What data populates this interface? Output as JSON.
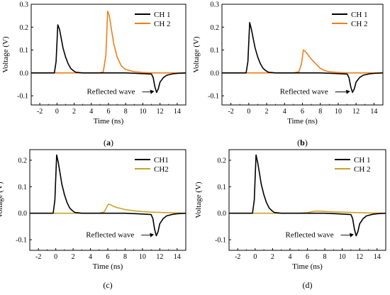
{
  "chart_data": [
    {
      "type": "line",
      "panel_label": "(a)",
      "xlabel": "Time (ns)",
      "ylabel": "Voltage (V)",
      "xlim": [
        -3,
        15
      ],
      "ylim": [
        -0.14,
        0.3
      ],
      "xticks": [
        -2,
        0,
        2,
        4,
        6,
        8,
        10,
        12,
        14
      ],
      "yticks": [
        -0.1,
        0.0,
        0.1,
        0.2,
        0.3
      ],
      "ytick_labels": [
        "-0.1",
        "0.0",
        "0.1",
        "0.2",
        "0.3"
      ],
      "legend_position": "top-right",
      "annotation": {
        "text": "Reflected wave",
        "x": 11.5,
        "y": -0.08
      },
      "series": [
        {
          "name": "CH 1",
          "color": "#000000",
          "x": [
            -3,
            -1,
            -0.3,
            -0.1,
            0.1,
            0.3,
            0.5,
            0.7,
            1.0,
            1.3,
            1.6,
            1.9,
            2.2,
            3,
            5,
            8,
            10,
            11,
            11.2,
            11.4,
            11.6,
            11.8,
            12.0,
            12.4,
            12.8,
            13.5,
            14,
            15
          ],
          "y": [
            0,
            0,
            0,
            0.05,
            0.21,
            0.19,
            0.15,
            0.11,
            0.07,
            0.04,
            0.02,
            0.01,
            0.003,
            0,
            0,
            0,
            -0.003,
            -0.005,
            -0.02,
            -0.06,
            -0.085,
            -0.07,
            -0.04,
            -0.02,
            -0.01,
            -0.004,
            -0.002,
            0
          ]
        },
        {
          "name": "CH 2",
          "color": "#f07f1a",
          "x": [
            -3,
            0,
            3,
            5,
            5.4,
            5.7,
            5.9,
            6.1,
            6.3,
            6.6,
            7.0,
            7.5,
            8.0,
            9,
            10,
            11,
            12,
            13,
            15
          ],
          "y": [
            0,
            0,
            0,
            0,
            0.005,
            0.08,
            0.27,
            0.25,
            0.2,
            0.13,
            0.07,
            0.03,
            0.015,
            0.005,
            0.002,
            0,
            0,
            0,
            0
          ]
        }
      ]
    },
    {
      "type": "line",
      "panel_label": "(b)",
      "xlabel": "Time (ns)",
      "ylabel": "Voltage (V)",
      "xlim": [
        -3,
        15
      ],
      "ylim": [
        -0.14,
        0.3
      ],
      "xticks": [
        -2,
        0,
        2,
        4,
        6,
        8,
        10,
        12,
        14
      ],
      "yticks": [
        -0.1,
        0.0,
        0.1,
        0.2,
        0.3
      ],
      "ytick_labels": [
        "-0.1",
        "0.0",
        "0.1",
        "0.2",
        "0.3"
      ],
      "legend_position": "top-right",
      "annotation": {
        "text": "Reflected wave",
        "x": 11.5,
        "y": -0.08
      },
      "series": [
        {
          "name": "CH 1",
          "color": "#000000",
          "x": [
            -3,
            -1,
            -0.3,
            -0.1,
            0.1,
            0.3,
            0.5,
            0.7,
            1.0,
            1.3,
            1.6,
            1.9,
            2.2,
            3,
            5,
            8,
            10,
            11,
            11.2,
            11.4,
            11.6,
            11.8,
            12.0,
            12.4,
            12.8,
            13.5,
            14,
            15
          ],
          "y": [
            0,
            0,
            0,
            0.05,
            0.22,
            0.19,
            0.15,
            0.11,
            0.07,
            0.04,
            0.02,
            0.01,
            0.003,
            0,
            0,
            0,
            -0.003,
            -0.005,
            -0.02,
            -0.06,
            -0.085,
            -0.07,
            -0.04,
            -0.02,
            -0.01,
            -0.004,
            -0.002,
            0
          ]
        },
        {
          "name": "CH 2",
          "color": "#f07f1a",
          "x": [
            -3,
            0,
            3,
            5,
            5.6,
            5.9,
            6.1,
            6.3,
            6.6,
            7.0,
            7.5,
            8.0,
            8.5,
            9,
            10,
            11,
            12,
            13,
            15
          ],
          "y": [
            0,
            0,
            0,
            0,
            0.005,
            0.04,
            0.1,
            0.095,
            0.08,
            0.06,
            0.04,
            0.02,
            0.01,
            0.005,
            0.002,
            0,
            0,
            0,
            0
          ]
        }
      ]
    },
    {
      "type": "line",
      "panel_label": "(c)",
      "xlabel": "Time (ns)",
      "ylabel": "Voltage (V)",
      "xlim": [
        -3,
        15
      ],
      "ylim": [
        -0.14,
        0.24
      ],
      "xticks": [
        -2,
        0,
        2,
        4,
        6,
        8,
        10,
        12,
        14
      ],
      "yticks": [
        -0.1,
        0.0,
        0.1,
        0.2
      ],
      "ytick_labels": [
        "-0.1",
        "0.0",
        "0.1",
        "0.2"
      ],
      "legend_position": "top-right",
      "annotation": {
        "text": "Reflected wave",
        "x": 11.5,
        "y": -0.08
      },
      "series": [
        {
          "name": "CH1",
          "color": "#000000",
          "x": [
            -3,
            -1,
            -0.3,
            -0.1,
            0.1,
            0.3,
            0.5,
            0.7,
            1.0,
            1.3,
            1.6,
            1.9,
            2.2,
            3,
            5,
            8,
            10,
            11,
            11.2,
            11.4,
            11.6,
            11.8,
            12.0,
            12.4,
            12.8,
            13.5,
            14,
            15
          ],
          "y": [
            0,
            0,
            0,
            0.05,
            0.22,
            0.19,
            0.15,
            0.11,
            0.07,
            0.04,
            0.02,
            0.01,
            0.003,
            0,
            0,
            0,
            -0.003,
            -0.005,
            -0.02,
            -0.06,
            -0.085,
            -0.07,
            -0.04,
            -0.02,
            -0.01,
            -0.004,
            -0.002,
            0
          ]
        },
        {
          "name": "CH2",
          "color": "#c9a227",
          "x": [
            -3,
            0,
            3,
            5,
            5.6,
            5.9,
            6.1,
            6.3,
            6.6,
            7.0,
            7.5,
            8.0,
            9,
            10,
            11,
            12,
            13,
            15
          ],
          "y": [
            0,
            0,
            0,
            0,
            0.005,
            0.025,
            0.034,
            0.032,
            0.027,
            0.022,
            0.018,
            0.014,
            0.009,
            0.006,
            0.004,
            0.003,
            0.002,
            0
          ]
        }
      ]
    },
    {
      "type": "line",
      "panel_label": "(d)",
      "xlabel": "Time (ns)",
      "ylabel": "Voltage (V)",
      "xlim": [
        -3,
        15
      ],
      "ylim": [
        -0.14,
        0.24
      ],
      "xticks": [
        -2,
        0,
        2,
        4,
        6,
        8,
        10,
        12,
        14
      ],
      "yticks": [
        -0.1,
        0.0,
        0.1,
        0.2
      ],
      "ytick_labels": [
        "-0.1",
        "0.0",
        "0.1",
        "0.2"
      ],
      "legend_position": "top-right",
      "annotation": {
        "text": "Reflected wave",
        "x": 11.5,
        "y": -0.08
      },
      "series": [
        {
          "name": "CH 1",
          "color": "#000000",
          "x": [
            -3,
            -1,
            -0.3,
            -0.1,
            0.1,
            0.3,
            0.5,
            0.7,
            1.0,
            1.3,
            1.6,
            1.9,
            2.2,
            3,
            5,
            8,
            10,
            11,
            11.2,
            11.4,
            11.6,
            11.8,
            12.0,
            12.4,
            12.8,
            13.5,
            14,
            15
          ],
          "y": [
            0,
            0,
            0,
            0.05,
            0.22,
            0.19,
            0.15,
            0.11,
            0.07,
            0.04,
            0.02,
            0.01,
            0.003,
            0,
            0,
            0,
            -0.003,
            -0.005,
            -0.02,
            -0.06,
            -0.085,
            -0.07,
            -0.04,
            -0.02,
            -0.01,
            -0.004,
            -0.002,
            0
          ]
        },
        {
          "name": "CH 2",
          "color": "#c9a227",
          "x": [
            -3,
            0,
            3,
            5,
            6,
            6.5,
            7,
            7.5,
            8,
            9,
            10,
            11,
            12,
            13,
            15
          ],
          "y": [
            0,
            0,
            0,
            0,
            0.002,
            0.006,
            0.008,
            0.008,
            0.007,
            0.005,
            0.004,
            0.003,
            0.002,
            0.001,
            0
          ]
        }
      ]
    }
  ]
}
